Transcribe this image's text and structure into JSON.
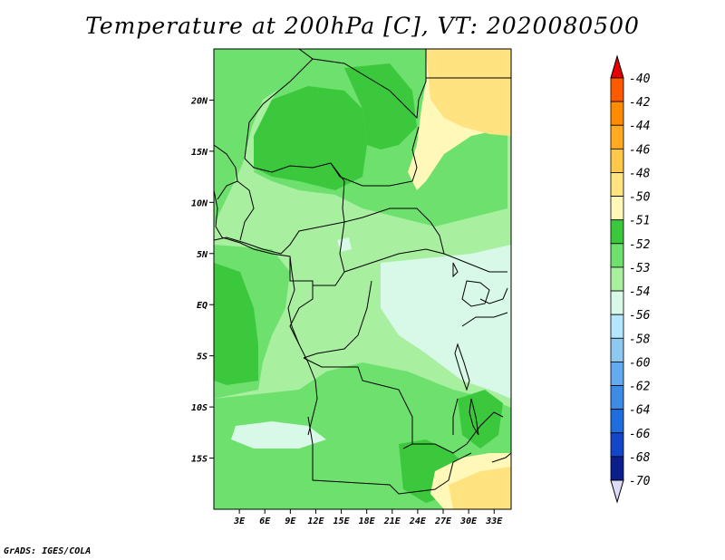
{
  "title": "Temperature at 200hPa [C], VT: 2020080500",
  "credit": "GrADS: IGES/COLA",
  "map": {
    "lat_labels": [
      {
        "text": "20N",
        "lat": 20
      },
      {
        "text": "15N",
        "lat": 15
      },
      {
        "text": "10N",
        "lat": 10
      },
      {
        "text": "5N",
        "lat": 5
      },
      {
        "text": "EQ",
        "lat": 0
      },
      {
        "text": "5S",
        "lat": -5
      },
      {
        "text": "10S",
        "lat": -10
      },
      {
        "text": "15S",
        "lat": -15
      }
    ],
    "lon_labels": [
      {
        "text": "3E",
        "lon": 3
      },
      {
        "text": "6E",
        "lon": 6
      },
      {
        "text": "9E",
        "lon": 9
      },
      {
        "text": "12E",
        "lon": 12
      },
      {
        "text": "15E",
        "lon": 15
      },
      {
        "text": "18E",
        "lon": 18
      },
      {
        "text": "21E",
        "lon": 21
      },
      {
        "text": "24E",
        "lon": 24
      },
      {
        "text": "27E",
        "lon": 27
      },
      {
        "text": "30E",
        "lon": 30
      },
      {
        "text": "33E",
        "lon": 33
      }
    ],
    "lon_range": [
      0,
      35
    ],
    "lat_range": [
      -20,
      25
    ]
  },
  "colorbar": {
    "levels": [
      "-40",
      "-42",
      "-44",
      "-46",
      "-48",
      "-50",
      "-51",
      "-52",
      "-53",
      "-54",
      "-56",
      "-58",
      "-60",
      "-62",
      "-64",
      "-66",
      "-68",
      "-70"
    ],
    "colors": [
      "#ff1a00",
      "#ff5a00",
      "#ff8c00",
      "#ffaa20",
      "#ffc84a",
      "#ffe380",
      "#fff8b8",
      "#3cc83c",
      "#6ee06e",
      "#a8f0a0",
      "#d8f8e8",
      "#b4e6ff",
      "#8cc8f0",
      "#64aaf0",
      "#3c8ce6",
      "#1e6ee0",
      "#1446c8",
      "#0a1e8c",
      "#000064"
    ],
    "top_triangle_color": "#e60000",
    "bottom_triangle_color": "#dcdcf8"
  }
}
